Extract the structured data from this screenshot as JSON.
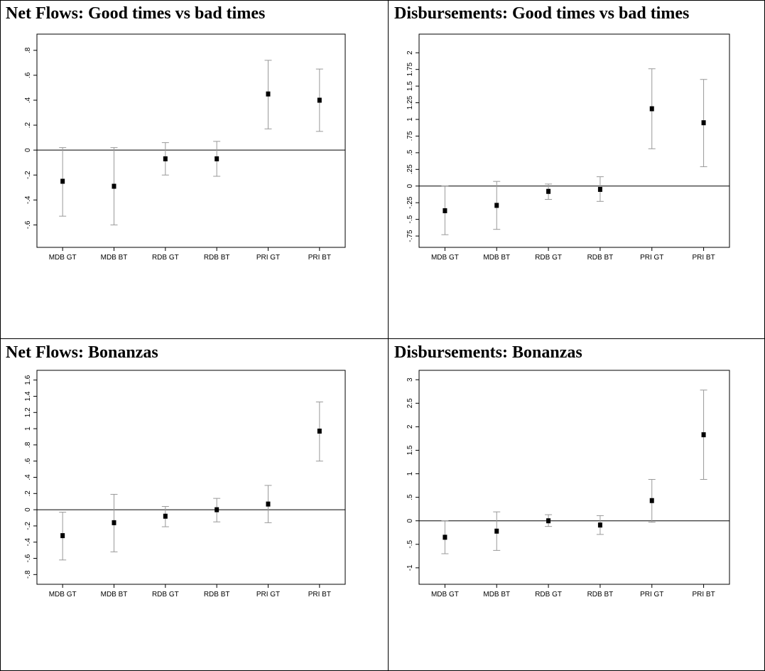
{
  "panels": [
    {
      "title": "Net Flows: Good times vs bad times"
    },
    {
      "title": "Disbursements: Good times vs bad times"
    },
    {
      "title": "Net Flows: Bonanzas"
    },
    {
      "title": "Disbursements: Bonanzas"
    }
  ],
  "chart_data": [
    {
      "type": "scatter",
      "title": "Net Flows: Good times vs bad times",
      "categories": [
        "MDB GT",
        "MDB BT",
        "RDB GT",
        "RDB BT",
        "PRI GT",
        "PRI BT"
      ],
      "values": [
        -0.25,
        -0.29,
        -0.07,
        -0.07,
        0.45,
        0.4
      ],
      "ci_low": [
        -0.53,
        -0.6,
        -0.2,
        -0.21,
        0.17,
        0.15
      ],
      "ci_high": [
        0.02,
        0.02,
        0.06,
        0.07,
        0.72,
        0.65
      ],
      "ylim": [
        -0.78,
        0.93
      ],
      "yticks": [
        -0.6,
        -0.4,
        -0.2,
        0,
        0.2,
        0.4,
        0.6,
        0.8
      ],
      "ytick_labels": [
        "-.6",
        "-.4",
        "-.2",
        "0",
        ".2",
        ".4",
        ".6",
        ".8"
      ],
      "reference_line": 0,
      "grid": false,
      "colors": {
        "marker": "#000000",
        "ci": "#999999",
        "axis": "#000000"
      }
    },
    {
      "type": "scatter",
      "title": "Disbursements: Good times vs bad times",
      "categories": [
        "MDB GT",
        "MDB BT",
        "RDB GT",
        "RDB BT",
        "PRI GT",
        "PRI BT"
      ],
      "values": [
        -0.37,
        -0.29,
        -0.08,
        -0.05,
        1.16,
        0.95
      ],
      "ci_low": [
        -0.73,
        -0.65,
        -0.2,
        -0.23,
        0.56,
        0.29
      ],
      "ci_high": [
        0.0,
        0.07,
        0.03,
        0.14,
        1.76,
        1.6
      ],
      "ylim": [
        -0.92,
        2.28
      ],
      "yticks": [
        -0.75,
        -0.5,
        -0.25,
        0,
        0.25,
        0.5,
        0.75,
        1,
        1.25,
        1.5,
        1.75,
        2
      ],
      "ytick_labels": [
        "-.75",
        "-.5",
        "-.25",
        "0",
        ".25",
        ".5",
        ".75",
        "1",
        "1.25",
        "1.5",
        "1.75",
        "2"
      ],
      "reference_line": 0,
      "grid": false,
      "colors": {
        "marker": "#000000",
        "ci": "#999999",
        "axis": "#000000"
      }
    },
    {
      "type": "scatter",
      "title": "Net Flows: Bonanzas",
      "categories": [
        "MDB GT",
        "MDB BT",
        "RDB GT",
        "RDB BT",
        "PRI GT",
        "PRI BT"
      ],
      "values": [
        -0.32,
        -0.16,
        -0.08,
        0.0,
        0.07,
        0.97
      ],
      "ci_low": [
        -0.62,
        -0.52,
        -0.21,
        -0.15,
        -0.16,
        0.6
      ],
      "ci_high": [
        -0.03,
        0.19,
        0.04,
        0.14,
        0.3,
        1.33
      ],
      "ylim": [
        -0.92,
        1.72
      ],
      "yticks": [
        -0.8,
        -0.6,
        -0.4,
        -0.2,
        0,
        0.2,
        0.4,
        0.6,
        0.8,
        1,
        1.2,
        1.4,
        1.6
      ],
      "ytick_labels": [
        "-.8",
        "-.6",
        "-.4",
        "-.2",
        "0",
        ".2",
        ".4",
        ".6",
        ".8",
        "1",
        "1.2",
        "1.4",
        "1.6"
      ],
      "reference_line": 0,
      "grid": false,
      "colors": {
        "marker": "#000000",
        "ci": "#999999",
        "axis": "#000000"
      }
    },
    {
      "type": "scatter",
      "title": "Disbursements: Bonanzas",
      "categories": [
        "MDB GT",
        "MDB BT",
        "RDB GT",
        "RDB BT",
        "PRI GT",
        "PRI BT"
      ],
      "values": [
        -0.35,
        -0.22,
        0.0,
        -0.09,
        0.43,
        1.83
      ],
      "ci_low": [
        -0.7,
        -0.63,
        -0.12,
        -0.29,
        -0.03,
        0.88
      ],
      "ci_high": [
        0.0,
        0.19,
        0.13,
        0.11,
        0.88,
        2.78
      ],
      "ylim": [
        -1.35,
        3.2
      ],
      "yticks": [
        -1,
        -0.5,
        0,
        0.5,
        1,
        1.5,
        2,
        2.5,
        3
      ],
      "ytick_labels": [
        "-1",
        "-.5",
        "0",
        ".5",
        "1",
        "1.5",
        "2",
        "2.5",
        "3"
      ],
      "reference_line": 0,
      "grid": false,
      "colors": {
        "marker": "#000000",
        "ci": "#999999",
        "axis": "#000000"
      }
    }
  ]
}
